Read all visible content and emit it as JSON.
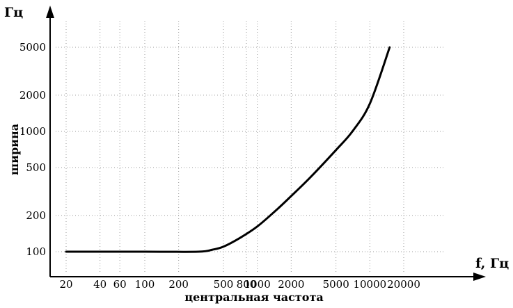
{
  "chart_data": {
    "type": "line",
    "title": "",
    "xlabel": "центральная частота",
    "xunit": "f, Гц",
    "ylabel": "ширина",
    "yunit": "Гц",
    "x_scale": "log",
    "y_scale": "log",
    "xlim": [
      18,
      25000
    ],
    "ylim": [
      80,
      8000
    ],
    "grid": true,
    "x_ticks": [
      {
        "value": 20,
        "label": "20"
      },
      {
        "value": 40,
        "label": "40"
      },
      {
        "value": 60,
        "label": "60"
      },
      {
        "value": 100,
        "label": "100"
      },
      {
        "value": 200,
        "label": "200"
      },
      {
        "value": 500,
        "label": "500"
      },
      {
        "value": 800,
        "label": "800"
      },
      {
        "value": 1000,
        "label": "1000"
      },
      {
        "value": 2000,
        "label": "2000"
      },
      {
        "value": 5000,
        "label": "5000"
      },
      {
        "value": 10000,
        "label": "10000"
      },
      {
        "value": 20000,
        "label": "20000"
      }
    ],
    "y_ticks": [
      {
        "value": 100,
        "label": "100"
      },
      {
        "value": 200,
        "label": "200"
      },
      {
        "value": 500,
        "label": "500"
      },
      {
        "value": 1000,
        "label": "1000"
      },
      {
        "value": 2000,
        "label": "2000"
      },
      {
        "value": 5000,
        "label": "5000"
      }
    ],
    "series": [
      {
        "x": [
          20,
          100,
          300,
          400,
          500,
          700,
          1000,
          1500,
          2000,
          3000,
          5000,
          7000,
          10000,
          15000
        ],
        "y": [
          100,
          100,
          100,
          104,
          110,
          130,
          162,
          225,
          290,
          420,
          700,
          1000,
          1700,
          5000
        ]
      }
    ]
  }
}
